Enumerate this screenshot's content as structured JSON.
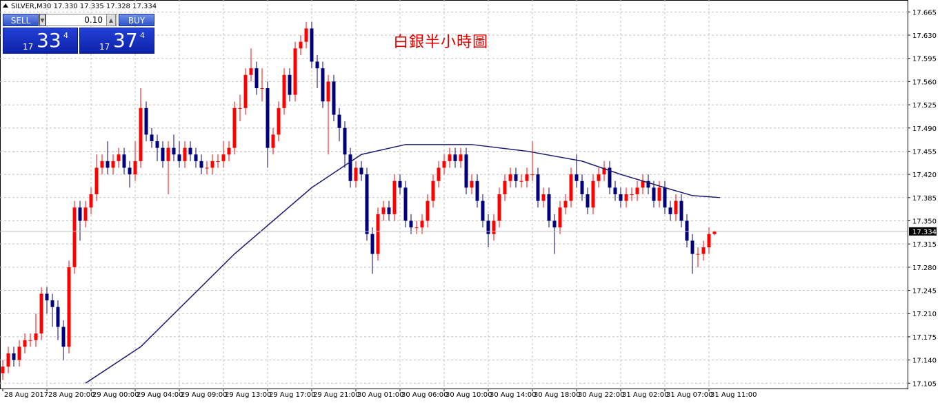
{
  "chart_data": {
    "type": "candlestick",
    "header": "SILVER,M30  17.330 17.335 17.328 17.334",
    "title": "白銀半小時圖",
    "up_color": "#ff0000",
    "down_color": "#00007f",
    "open": [
      17.12,
      17.13,
      17.15,
      17.14,
      17.16,
      17.17,
      17.17,
      17.18,
      17.24,
      17.23,
      17.22,
      17.19,
      17.16,
      17.28,
      17.37,
      17.35,
      17.37,
      17.39,
      17.43,
      17.44,
      17.43,
      17.44,
      17.45,
      17.43,
      17.42,
      17.44,
      17.52,
      17.48,
      17.47,
      17.46,
      17.44,
      17.46,
      17.45,
      17.44,
      17.46,
      17.45,
      17.44,
      17.43,
      17.43,
      17.44,
      17.44,
      17.45,
      17.46,
      17.52,
      17.52,
      17.57,
      17.58,
      17.55,
      17.55,
      17.46,
      17.48,
      17.52,
      17.57,
      17.54,
      17.61,
      17.62,
      17.64,
      17.59,
      17.58,
      17.53,
      17.56,
      17.51,
      17.49,
      17.45,
      17.41,
      17.43,
      17.42,
      17.33,
      17.3,
      17.36,
      17.37,
      17.36,
      17.41,
      17.4,
      17.35,
      17.34,
      17.34,
      17.35,
      17.38,
      17.41,
      17.43,
      17.44,
      17.45,
      17.44,
      17.45,
      17.4,
      17.41,
      17.38,
      17.35,
      17.33,
      17.35,
      17.39,
      17.41,
      17.42,
      17.41,
      17.41,
      17.42,
      17.42,
      17.38,
      17.39,
      17.35,
      17.34,
      17.37,
      17.38,
      17.42,
      17.41,
      17.39,
      17.37,
      17.41,
      17.42,
      17.43,
      17.4,
      17.39,
      17.38,
      17.39,
      17.39,
      17.4,
      17.41,
      17.4,
      17.38,
      17.4,
      17.37,
      17.36,
      17.38,
      17.35,
      17.32,
      17.3,
      17.3,
      17.31,
      17.33
    ],
    "high": [
      17.14,
      17.16,
      17.16,
      17.17,
      17.18,
      17.18,
      17.21,
      17.25,
      17.25,
      17.24,
      17.23,
      17.2,
      17.29,
      17.38,
      17.38,
      17.38,
      17.4,
      17.45,
      17.45,
      17.47,
      17.45,
      17.46,
      17.46,
      17.44,
      17.47,
      17.55,
      17.53,
      17.49,
      17.48,
      17.47,
      17.47,
      17.48,
      17.47,
      17.47,
      17.47,
      17.46,
      17.45,
      17.44,
      17.45,
      17.45,
      17.47,
      17.47,
      17.53,
      17.54,
      17.58,
      17.61,
      17.59,
      17.58,
      17.56,
      17.49,
      17.53,
      17.58,
      17.58,
      17.62,
      17.63,
      17.65,
      17.65,
      17.6,
      17.59,
      17.57,
      17.57,
      17.52,
      17.5,
      17.46,
      17.44,
      17.44,
      17.43,
      17.34,
      17.37,
      17.38,
      17.38,
      17.42,
      17.42,
      17.41,
      17.36,
      17.35,
      17.36,
      17.39,
      17.42,
      17.44,
      17.45,
      17.46,
      17.46,
      17.46,
      17.46,
      17.42,
      17.42,
      17.39,
      17.36,
      17.36,
      17.4,
      17.42,
      17.43,
      17.43,
      17.42,
      17.43,
      17.47,
      17.43,
      17.4,
      17.4,
      17.36,
      17.38,
      17.39,
      17.43,
      17.45,
      17.42,
      17.4,
      17.42,
      17.43,
      17.44,
      17.44,
      17.41,
      17.4,
      17.4,
      17.4,
      17.41,
      17.42,
      17.42,
      17.41,
      17.41,
      17.41,
      17.38,
      17.39,
      17.39,
      17.36,
      17.33,
      17.31,
      17.32,
      17.34,
      17.335
    ],
    "low": [
      17.11,
      17.12,
      17.13,
      17.13,
      17.15,
      17.16,
      17.16,
      17.17,
      17.21,
      17.19,
      17.17,
      17.14,
      17.15,
      17.27,
      17.32,
      17.34,
      17.36,
      17.38,
      17.42,
      17.42,
      17.42,
      17.43,
      17.42,
      17.4,
      17.41,
      17.43,
      17.47,
      17.46,
      17.44,
      17.43,
      17.39,
      17.44,
      17.43,
      17.43,
      17.44,
      17.43,
      17.42,
      17.42,
      17.42,
      17.43,
      17.43,
      17.44,
      17.45,
      17.5,
      17.51,
      17.56,
      17.54,
      17.53,
      17.43,
      17.45,
      17.47,
      17.51,
      17.53,
      17.53,
      17.6,
      17.61,
      17.58,
      17.55,
      17.52,
      17.45,
      17.5,
      17.47,
      17.43,
      17.4,
      17.4,
      17.41,
      17.32,
      17.27,
      17.29,
      17.35,
      17.35,
      17.35,
      17.39,
      17.34,
      17.33,
      17.33,
      17.33,
      17.34,
      17.37,
      17.4,
      17.42,
      17.43,
      17.43,
      17.43,
      17.39,
      17.39,
      17.37,
      17.34,
      17.31,
      17.32,
      17.34,
      17.38,
      17.4,
      17.4,
      17.4,
      17.4,
      17.41,
      17.37,
      17.37,
      17.34,
      17.3,
      17.33,
      17.36,
      17.37,
      17.4,
      17.38,
      17.36,
      17.36,
      17.4,
      17.41,
      17.39,
      17.38,
      17.37,
      17.37,
      17.38,
      17.38,
      17.39,
      17.39,
      17.37,
      17.37,
      17.36,
      17.35,
      17.35,
      17.34,
      17.31,
      17.27,
      17.28,
      17.29,
      17.3,
      17.328
    ],
    "close": [
      17.13,
      17.15,
      17.14,
      17.16,
      17.17,
      17.17,
      17.18,
      17.24,
      17.23,
      17.22,
      17.19,
      17.16,
      17.28,
      17.37,
      17.35,
      17.37,
      17.39,
      17.43,
      17.44,
      17.43,
      17.44,
      17.45,
      17.43,
      17.42,
      17.44,
      17.52,
      17.48,
      17.47,
      17.46,
      17.44,
      17.46,
      17.45,
      17.44,
      17.46,
      17.45,
      17.44,
      17.43,
      17.43,
      17.44,
      17.44,
      17.45,
      17.46,
      17.52,
      17.52,
      17.57,
      17.58,
      17.55,
      17.55,
      17.46,
      17.48,
      17.52,
      17.57,
      17.54,
      17.61,
      17.62,
      17.64,
      17.59,
      17.58,
      17.53,
      17.56,
      17.51,
      17.49,
      17.45,
      17.41,
      17.43,
      17.42,
      17.33,
      17.3,
      17.36,
      17.37,
      17.36,
      17.41,
      17.4,
      17.35,
      17.34,
      17.34,
      17.35,
      17.38,
      17.41,
      17.43,
      17.44,
      17.45,
      17.44,
      17.45,
      17.4,
      17.41,
      17.38,
      17.35,
      17.33,
      17.35,
      17.39,
      17.41,
      17.42,
      17.41,
      17.41,
      17.42,
      17.42,
      17.38,
      17.39,
      17.35,
      17.34,
      17.37,
      17.38,
      17.42,
      17.41,
      17.39,
      17.37,
      17.41,
      17.42,
      17.43,
      17.4,
      17.39,
      17.38,
      17.39,
      17.39,
      17.4,
      17.41,
      17.4,
      17.38,
      17.4,
      17.37,
      17.36,
      17.38,
      17.35,
      17.32,
      17.3,
      17.3,
      17.31,
      17.33,
      17.334
    ],
    "ma": {
      "color": "#191970",
      "x": [
        15,
        25,
        42,
        56,
        65,
        73,
        85,
        95,
        105,
        112,
        120,
        125,
        130
      ],
      "values": [
        17.105,
        17.16,
        17.3,
        17.4,
        17.45,
        17.465,
        17.465,
        17.455,
        17.44,
        17.42,
        17.4,
        17.388,
        17.385
      ]
    },
    "last": 17.334,
    "xlim": [
      -0.5,
      164
    ],
    "ylim": [
      17.097,
      17.683
    ],
    "grid": true,
    "yticks": [
      17.105,
      {
        "value": 17.14,
        "label": "17.140"
      },
      17.175,
      {
        "value": 17.21,
        "label": "17.210"
      },
      17.245,
      {
        "value": 17.28,
        "label": "17.280"
      },
      17.315,
      {
        "value": 17.35,
        "label": "17.350"
      },
      17.385,
      {
        "value": 17.42,
        "label": "17.420"
      },
      17.455,
      {
        "value": 17.49,
        "label": "17.490"
      },
      17.525,
      {
        "value": 17.56,
        "label": "17.560"
      },
      17.595,
      {
        "value": 17.63,
        "label": "17.630"
      },
      17.665
    ],
    "xticks": [
      {
        "value": 0,
        "label": "28 Aug 2017"
      },
      {
        "value": 8,
        "label": "28 Aug 20:00"
      },
      {
        "value": 16,
        "label": "29 Aug 00:00"
      },
      {
        "value": 24,
        "label": "29 Aug 04:00"
      },
      {
        "value": 32,
        "label": "29 Aug 09:00"
      },
      {
        "value": 40,
        "label": "29 Aug 13:00"
      },
      {
        "value": 48,
        "label": "29 Aug 17:00"
      },
      {
        "value": 56,
        "label": "29 Aug 21:00"
      },
      {
        "value": 64,
        "label": "30 Aug 01:00"
      },
      {
        "value": 72,
        "label": "30 Aug 06:00"
      },
      {
        "value": 80,
        "label": "30 Aug 10:00"
      },
      {
        "value": 88,
        "label": "30 Aug 14:00"
      },
      {
        "value": 96,
        "label": "30 Aug 18:00"
      },
      {
        "value": 104,
        "label": "30 Aug 22:00"
      },
      {
        "value": 112,
        "label": "31 Aug 02:00"
      },
      {
        "value": 120,
        "label": "31 Aug 07:00"
      },
      {
        "value": 128,
        "label": "31 Aug 11:00"
      }
    ]
  },
  "trade_panel": {
    "sell_label": "SELL",
    "buy_label": "BUY",
    "lot": "0.10",
    "sell": {
      "prefix": "17",
      "big": "33",
      "sup": "4"
    },
    "buy": {
      "prefix": "17",
      "big": "37",
      "sup": "4"
    }
  }
}
